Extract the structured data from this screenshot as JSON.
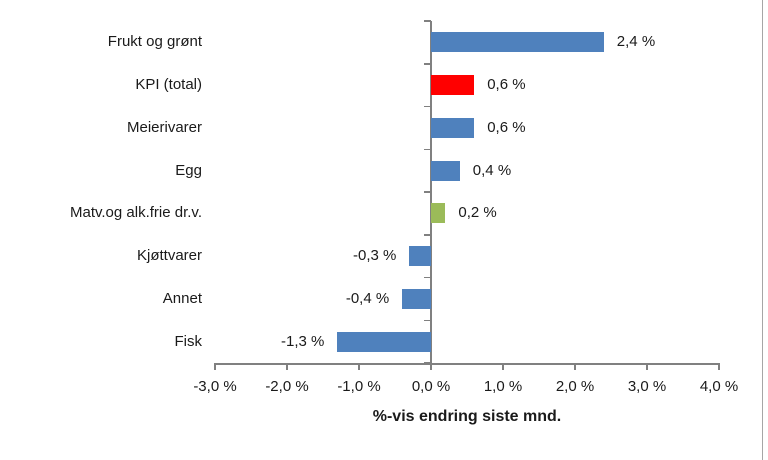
{
  "chart_data": {
    "type": "bar",
    "orientation": "horizontal",
    "title": "",
    "xlabel": "%-vis endring siste mnd.",
    "ylabel": "",
    "xlim": [
      -3.0,
      4.0
    ],
    "grid": false,
    "legend": "none",
    "categories": [
      "Frukt og grønt",
      "KPI (total)",
      "Meierivarer",
      "Egg",
      "Matv.og alk.frie dr.v.",
      "Kjøttvarer",
      "Annet",
      "Fisk"
    ],
    "values": [
      2.4,
      0.6,
      0.6,
      0.4,
      0.2,
      -0.3,
      -0.4,
      -1.3
    ],
    "value_labels": [
      "2,4 %",
      "0,6 %",
      "0,6 %",
      "0,4 %",
      "0,2 %",
      "-0,3 %",
      "-0,4 %",
      "-1,3 %"
    ],
    "bar_colors": [
      "#4f81bd",
      "#ff0000",
      "#4f81bd",
      "#4f81bd",
      "#9bbb59",
      "#4f81bd",
      "#4f81bd",
      "#4f81bd"
    ],
    "x_ticks": [
      -3,
      -2,
      -1,
      0,
      1,
      2,
      3,
      4
    ],
    "x_tick_labels": [
      "-3,0 %",
      "-2,0 %",
      "-1,0 %",
      "0,0 %",
      "1,0 %",
      "2,0 %",
      "3,0 %",
      "4,0 %"
    ],
    "colors": {
      "bar_default": "#4f81bd",
      "bar_highlight_red": "#ff0000",
      "bar_highlight_green": "#9bbb59",
      "axis": "#808080",
      "text": "#1a1a1a",
      "background": "#ffffff",
      "frame_edge": "#a6a6a6"
    }
  }
}
